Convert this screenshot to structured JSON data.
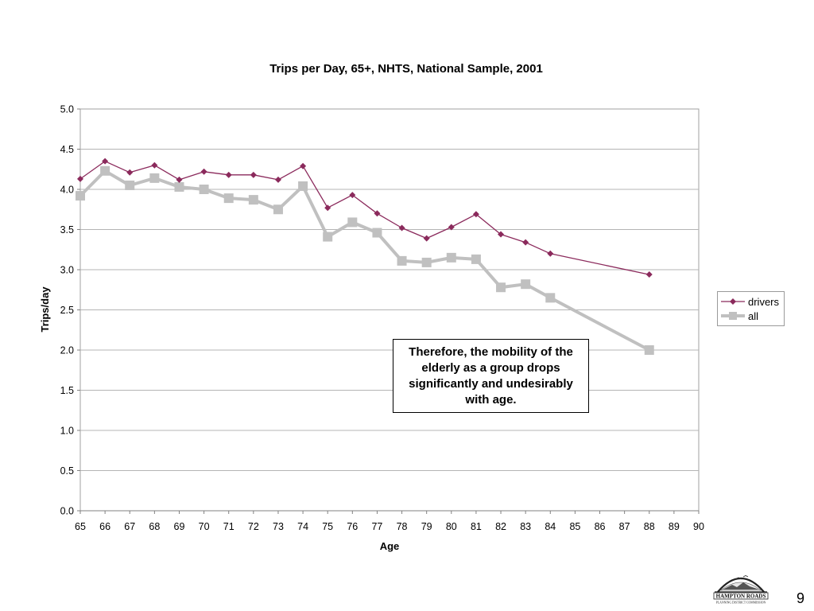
{
  "chart_data": {
    "type": "line",
    "title": "Trips per Day, 65+, NHTS, National Sample, 2001",
    "xlabel": "Age",
    "ylabel": "Trips/day",
    "xlim": [
      65,
      90
    ],
    "ylim": [
      0.0,
      5.0
    ],
    "x_ticks": [
      "65",
      "66",
      "67",
      "68",
      "69",
      "70",
      "71",
      "72",
      "73",
      "74",
      "75",
      "76",
      "77",
      "78",
      "79",
      "80",
      "81",
      "82",
      "83",
      "84",
      "85",
      "86",
      "87",
      "88",
      "89",
      "90"
    ],
    "y_ticks": [
      "0.0",
      "0.5",
      "1.0",
      "1.5",
      "2.0",
      "2.5",
      "3.0",
      "3.5",
      "4.0",
      "4.5",
      "5.0"
    ],
    "grid": true,
    "legend_position": "right",
    "series": [
      {
        "name": "drivers",
        "color": "#8b2a5c",
        "marker": "diamond",
        "points": [
          [
            65,
            4.13
          ],
          [
            66,
            4.35
          ],
          [
            67,
            4.21
          ],
          [
            68,
            4.3
          ],
          [
            69,
            4.12
          ],
          [
            70,
            4.22
          ],
          [
            71,
            4.18
          ],
          [
            72,
            4.18
          ],
          [
            73,
            4.12
          ],
          [
            74,
            4.29
          ],
          [
            75,
            3.77
          ],
          [
            76,
            3.93
          ],
          [
            77,
            3.7
          ],
          [
            78,
            3.52
          ],
          [
            79,
            3.39
          ],
          [
            80,
            3.53
          ],
          [
            81,
            3.69
          ],
          [
            82,
            3.44
          ],
          [
            83,
            3.34
          ],
          [
            84,
            3.2
          ],
          [
            88,
            2.94
          ]
        ]
      },
      {
        "name": "all",
        "color": "#c0c0c0",
        "marker": "square",
        "points": [
          [
            65,
            3.92
          ],
          [
            66,
            4.23
          ],
          [
            67,
            4.05
          ],
          [
            68,
            4.14
          ],
          [
            69,
            4.03
          ],
          [
            70,
            4.0
          ],
          [
            71,
            3.89
          ],
          [
            72,
            3.87
          ],
          [
            73,
            3.75
          ],
          [
            74,
            4.04
          ],
          [
            75,
            3.41
          ],
          [
            76,
            3.59
          ],
          [
            77,
            3.46
          ],
          [
            78,
            3.11
          ],
          [
            79,
            3.09
          ],
          [
            80,
            3.15
          ],
          [
            81,
            3.13
          ],
          [
            82,
            2.78
          ],
          [
            83,
            2.82
          ],
          [
            84,
            2.65
          ],
          [
            88,
            2.0
          ]
        ]
      }
    ]
  },
  "annotation": {
    "text": "Therefore, the mobility of the elderly as a group drops significantly and undesirably with age."
  },
  "logo": {
    "icon": "hampton-roads-logo",
    "text": "HAMPTON ROADS",
    "subtext": "PLANNING DISTRICT COMMISSION"
  },
  "page_number": "9"
}
